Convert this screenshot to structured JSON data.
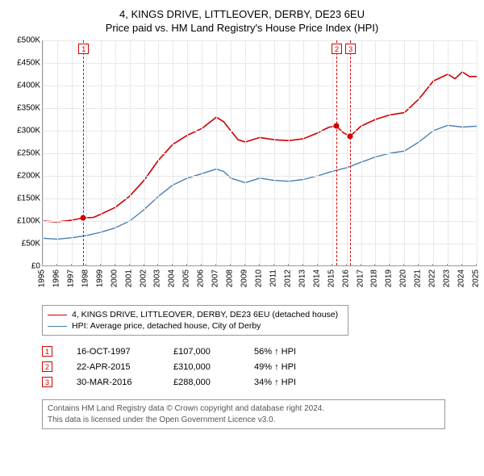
{
  "title_line1": "4, KINGS DRIVE, LITTLEOVER, DERBY, DE23 6EU",
  "title_line2": "Price paid vs. HM Land Registry's House Price Index (HPI)",
  "chart": {
    "type": "line",
    "ylim": [
      0,
      500000
    ],
    "ytick_step": 50000,
    "ytick_labels": [
      "£0",
      "£50K",
      "£100K",
      "£150K",
      "£200K",
      "£250K",
      "£300K",
      "£350K",
      "£400K",
      "£450K",
      "£500K"
    ],
    "xlim": [
      1995,
      2025
    ],
    "xticks": [
      1995,
      1996,
      1997,
      1998,
      1999,
      2000,
      2001,
      2002,
      2003,
      2004,
      2005,
      2006,
      2007,
      2008,
      2009,
      2010,
      2011,
      2012,
      2013,
      2014,
      2015,
      2016,
      2017,
      2018,
      2019,
      2020,
      2021,
      2022,
      2023,
      2024,
      2025
    ],
    "grid_color": "#e8e8e8",
    "background_color": "#ffffff",
    "axis_color": "#999999",
    "series": [
      {
        "name": "property",
        "color": "#d00000",
        "width": 1.6,
        "points": [
          [
            1995,
            100000
          ],
          [
            1996,
            98000
          ],
          [
            1997,
            102000
          ],
          [
            1997.8,
            107000
          ],
          [
            1998.5,
            108000
          ],
          [
            1999,
            115000
          ],
          [
            2000,
            130000
          ],
          [
            2001,
            155000
          ],
          [
            2002,
            190000
          ],
          [
            2003,
            235000
          ],
          [
            2004,
            270000
          ],
          [
            2005,
            290000
          ],
          [
            2006,
            305000
          ],
          [
            2007,
            330000
          ],
          [
            2007.5,
            320000
          ],
          [
            2008,
            300000
          ],
          [
            2008.5,
            280000
          ],
          [
            2009,
            275000
          ],
          [
            2010,
            285000
          ],
          [
            2011,
            280000
          ],
          [
            2012,
            278000
          ],
          [
            2013,
            282000
          ],
          [
            2014,
            295000
          ],
          [
            2014.8,
            308000
          ],
          [
            2015.3,
            310000
          ],
          [
            2015.8,
            295000
          ],
          [
            2016.25,
            288000
          ],
          [
            2017,
            310000
          ],
          [
            2018,
            325000
          ],
          [
            2019,
            335000
          ],
          [
            2020,
            340000
          ],
          [
            2021,
            370000
          ],
          [
            2022,
            410000
          ],
          [
            2023,
            425000
          ],
          [
            2023.5,
            415000
          ],
          [
            2024,
            430000
          ],
          [
            2024.5,
            420000
          ],
          [
            2025,
            420000
          ]
        ]
      },
      {
        "name": "hpi",
        "color": "#4a7fb0",
        "width": 1.4,
        "points": [
          [
            1995,
            62000
          ],
          [
            1996,
            60000
          ],
          [
            1997,
            63000
          ],
          [
            1998,
            68000
          ],
          [
            1999,
            75000
          ],
          [
            2000,
            85000
          ],
          [
            2001,
            100000
          ],
          [
            2002,
            125000
          ],
          [
            2003,
            155000
          ],
          [
            2004,
            180000
          ],
          [
            2005,
            195000
          ],
          [
            2006,
            205000
          ],
          [
            2007,
            215000
          ],
          [
            2007.5,
            210000
          ],
          [
            2008,
            195000
          ],
          [
            2009,
            185000
          ],
          [
            2010,
            195000
          ],
          [
            2011,
            190000
          ],
          [
            2012,
            188000
          ],
          [
            2013,
            192000
          ],
          [
            2014,
            200000
          ],
          [
            2015,
            210000
          ],
          [
            2016,
            218000
          ],
          [
            2017,
            230000
          ],
          [
            2018,
            242000
          ],
          [
            2019,
            250000
          ],
          [
            2020,
            255000
          ],
          [
            2021,
            275000
          ],
          [
            2022,
            300000
          ],
          [
            2023,
            312000
          ],
          [
            2024,
            308000
          ],
          [
            2025,
            310000
          ]
        ]
      }
    ],
    "sale_markers": [
      {
        "n": "1",
        "year": 1997.8,
        "price": 107000
      },
      {
        "n": "2",
        "year": 2015.3,
        "price": 310000
      },
      {
        "n": "3",
        "year": 2016.25,
        "price": 288000
      }
    ]
  },
  "legend": [
    {
      "color": "#d00000",
      "label": "4, KINGS DRIVE, LITTLEOVER, DERBY, DE23 6EU (detached house)"
    },
    {
      "color": "#4a7fb0",
      "label": "HPI: Average price, detached house, City of Derby"
    }
  ],
  "sales": [
    {
      "n": "1",
      "date": "16-OCT-1997",
      "price": "£107,000",
      "hpi": "56% ↑ HPI"
    },
    {
      "n": "2",
      "date": "22-APR-2015",
      "price": "£310,000",
      "hpi": "49% ↑ HPI"
    },
    {
      "n": "3",
      "date": "30-MAR-2016",
      "price": "£288,000",
      "hpi": "34% ↑ HPI"
    }
  ],
  "attribution_line1": "Contains HM Land Registry data © Crown copyright and database right 2024.",
  "attribution_line2": "This data is licensed under the Open Government Licence v3.0."
}
